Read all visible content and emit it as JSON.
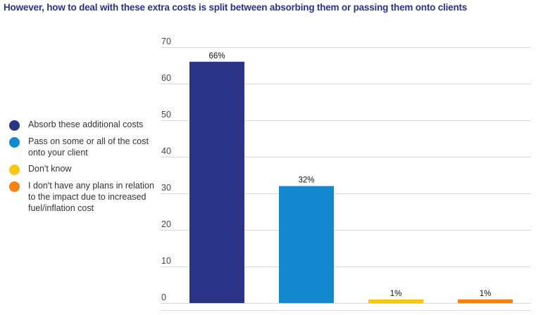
{
  "chart_data": {
    "type": "bar",
    "title": "However, how to deal with these extra costs is split between absorbing them or passing them onto clients",
    "xlabel": "",
    "ylabel": "",
    "ylim": [
      0,
      70
    ],
    "yticks": [
      0,
      10,
      20,
      30,
      40,
      50,
      60,
      70
    ],
    "grid": true,
    "legend_position": "left",
    "categories": [
      "Absorb these additional costs",
      "Pass on some or all of the cost onto your client",
      "Don't know",
      "I don't have any plans in relation to the impact due to increased fuel/inflation cost"
    ],
    "values": [
      66,
      32,
      1,
      1
    ],
    "data_labels": [
      "66%",
      "32%",
      "1%",
      "1%"
    ],
    "colors": [
      "#2b3386",
      "#1489cf",
      "#f9c712",
      "#f5820f"
    ]
  },
  "legend": [
    {
      "label": "Absorb these additional costs",
      "color": "#2b3386"
    },
    {
      "label": "Pass on some or all of the cost onto your client",
      "color": "#1489cf"
    },
    {
      "label": "Don't know",
      "color": "#f9c712"
    },
    {
      "label": "I don't have any plans in relation to the impact due to increased fuel/inflation cost",
      "color": "#f5820f"
    }
  ]
}
